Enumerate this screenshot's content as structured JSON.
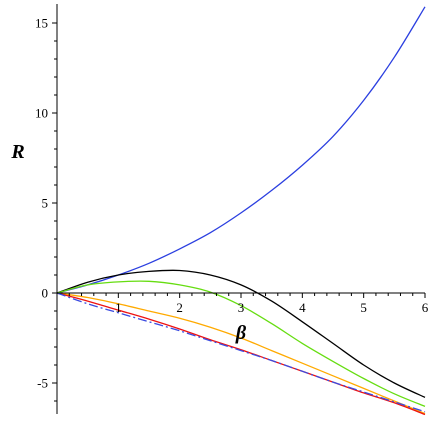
{
  "chart_data": {
    "type": "line",
    "title": "",
    "xlabel": "β",
    "ylabel": "R",
    "xlim": [
      0,
      6
    ],
    "ylim": [
      -7,
      16
    ],
    "x_ticks": [
      1,
      2,
      3,
      4,
      5,
      6
    ],
    "x_tick_labels": [
      "1",
      "2",
      "3",
      "4",
      "5",
      "6"
    ],
    "y_ticks": [
      -5,
      0,
      5,
      10,
      15
    ],
    "y_tick_labels": [
      "-5",
      "0",
      "5",
      "10",
      "15"
    ],
    "grid": false,
    "legend": "none",
    "x": [
      0,
      0.5,
      1,
      1.5,
      2,
      2.5,
      3,
      3.5,
      4,
      4.5,
      5,
      5.5,
      6
    ],
    "series": [
      {
        "color": "#2b3fe0",
        "dash": "solid",
        "values": [
          0,
          0.45,
          1.0,
          1.65,
          2.45,
          3.35,
          4.45,
          5.7,
          7.1,
          8.7,
          10.7,
          13.1,
          15.9
        ]
      },
      {
        "color": "#000000",
        "dash": "solid",
        "values": [
          0,
          0.6,
          1.0,
          1.2,
          1.25,
          1.0,
          0.45,
          -0.45,
          -1.6,
          -2.8,
          -4.0,
          -5.0,
          -5.8
        ]
      },
      {
        "color": "#66dd11",
        "dash": "solid",
        "values": [
          0,
          0.45,
          0.62,
          0.65,
          0.45,
          0.05,
          -0.7,
          -1.7,
          -2.8,
          -3.8,
          -4.75,
          -5.6,
          -6.3
        ]
      },
      {
        "color": "#ffaa00",
        "dash": "solid",
        "values": [
          0,
          -0.25,
          -0.6,
          -1.0,
          -1.4,
          -1.9,
          -2.5,
          -3.2,
          -3.9,
          -4.6,
          -5.3,
          -6.0,
          -6.7
        ]
      },
      {
        "color": "#ee1111",
        "dash": "solid",
        "values": [
          0,
          -0.45,
          -0.95,
          -1.45,
          -2.0,
          -2.6,
          -3.15,
          -3.75,
          -4.35,
          -4.95,
          -5.55,
          -6.1,
          -6.75
        ]
      },
      {
        "color": "#3b4be0",
        "dash": "dashdot",
        "values": [
          0,
          -0.6,
          -1.1,
          -1.6,
          -2.1,
          -2.65,
          -3.2,
          -3.75,
          -4.35,
          -4.95,
          -5.5,
          -6.05,
          -6.6
        ]
      }
    ]
  }
}
